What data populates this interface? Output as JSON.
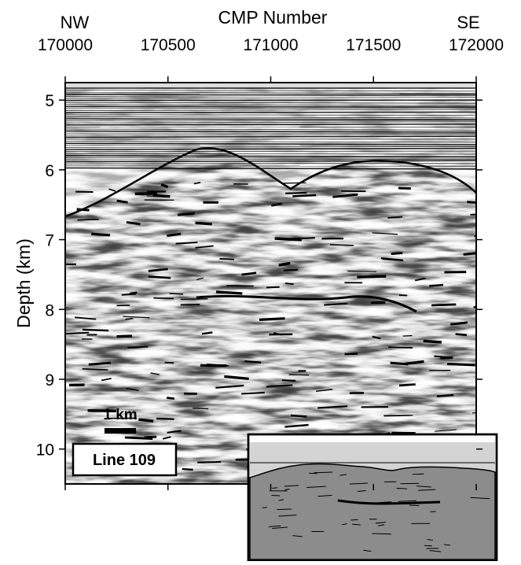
{
  "chart_data": {
    "type": "image",
    "x_label": "CMP Number",
    "y_label": "Depth (km)",
    "left_label": "NW",
    "right_label": "SE",
    "xlim": [
      170000,
      172000
    ],
    "xticks": [
      170000,
      170500,
      171000,
      171500,
      172000
    ],
    "ylim": [
      4.75,
      10.5
    ],
    "yticks": [
      5,
      6,
      7,
      8,
      9,
      10
    ],
    "y_inverted": true,
    "scale_bar": "1 km",
    "panel_label": "Line 109"
  }
}
